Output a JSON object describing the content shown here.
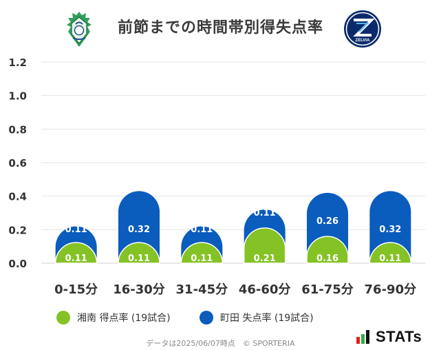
{
  "header": {
    "title": "前節までの時間帯別得失点率",
    "home_team_logo": "shonan-bellmare-crest",
    "away_team_logo": "machida-zelvia-crest",
    "away_logo_text": "ZELVIA"
  },
  "chart_data": {
    "type": "bar",
    "title": "前節までの時間帯別得失点率",
    "xlabel": "",
    "ylabel": "",
    "categories": [
      "0-15分",
      "16-30分",
      "31-45分",
      "46-60分",
      "61-75分",
      "76-90分"
    ],
    "series": [
      {
        "name": "湘南 得点率 (19試合)",
        "values": [
          0.11,
          0.11,
          0.11,
          0.21,
          0.16,
          0.11
        ],
        "color": "#84c225"
      },
      {
        "name": "町田 失点率 (19試合)",
        "values": [
          0.11,
          0.32,
          0.11,
          0.11,
          0.26,
          0.32
        ],
        "color": "#0a5cbd"
      }
    ],
    "ylim": [
      0,
      1.2
    ],
    "yticks": [
      "0.0",
      "0.2",
      "0.4",
      "0.6",
      "0.8",
      "1.0",
      "1.2"
    ],
    "grid": true,
    "legend": "bottom"
  },
  "legend": {
    "home": "湘南 得点率 (19試合)",
    "away": "町田 失点率 (19試合)"
  },
  "footer": {
    "note": "データは2025/06/07時点　© SPORTERIA",
    "brand": "STATs"
  },
  "colors": {
    "home": "#84c225",
    "away": "#0a5cbd",
    "grid": "#e3e3e3"
  }
}
